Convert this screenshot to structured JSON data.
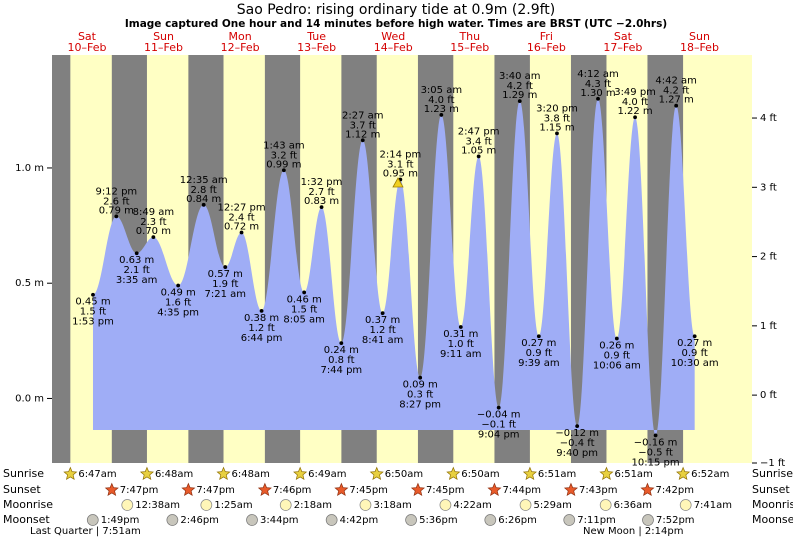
{
  "chart_data": {
    "type": "tide",
    "title": "Sao Pedro: rising  ordinary tide at 0.9m (2.9ft)",
    "subtitle": "Image captured One hour and 14 minutes before high water. Times are BRST (UTC −2.0hrs)",
    "ylim": [
      -0.28,
      1.49
    ],
    "yticks": [
      {
        "value": 0,
        "label": "0.0 m"
      },
      {
        "value": 0.5,
        "label": "0.5 m"
      },
      {
        "value": 1,
        "label": "1.0 m"
      }
    ],
    "y2lim": [
      -0.98,
      4.91
    ],
    "y2ticks": [
      {
        "value": -1,
        "label": "−1 ft"
      },
      {
        "value": 0,
        "label": "0 ft"
      },
      {
        "value": 1,
        "label": "1 ft"
      },
      {
        "value": 2,
        "label": "2 ft"
      },
      {
        "value": 3,
        "label": "3 ft"
      },
      {
        "value": 4,
        "label": "4 ft"
      }
    ],
    "row_labels": {
      "sunrise": "Sunrise",
      "sunset": "Sunset",
      "moonrise": "Moonrise",
      "moonset": "Moonset"
    },
    "days": [
      {
        "weekday": "Sat",
        "date": "10–Feb",
        "sunrise": "6:47am",
        "sunset": "7:47pm",
        "moonset": "1:49pm",
        "tides": [
          {
            "time": "1:53 pm",
            "height_m": 0.45,
            "label_m": "0.45 m",
            "label_ft": "1.5 ft"
          },
          {
            "time": "9:12 pm",
            "height_m": 0.79,
            "label_m": "0.79 m",
            "label_ft": "2.6 ft"
          }
        ]
      },
      {
        "weekday": "Sun",
        "date": "11–Feb",
        "sunrise": "6:48am",
        "sunset": "7:47pm",
        "moonrise": "12:38am",
        "moonset": "2:46pm",
        "tides": [
          {
            "time": "3:35 am",
            "height_m": 0.63,
            "label_m": "0.63 m",
            "label_ft": "2.1 ft"
          },
          {
            "time": "8:49 am",
            "height_m": 0.7,
            "label_m": "0.70 m",
            "label_ft": "2.3 ft"
          },
          {
            "time": "4:35 pm",
            "height_m": 0.49,
            "label_m": "0.49 m",
            "label_ft": "1.6 ft"
          }
        ]
      },
      {
        "weekday": "Mon",
        "date": "12–Feb",
        "sunrise": "6:48am",
        "sunset": "7:46pm",
        "moonrise": "1:25am",
        "moonset": "3:44pm",
        "tides": [
          {
            "time": "12:35 am",
            "height_m": 0.84,
            "label_m": "0.84 m",
            "label_ft": "2.8 ft"
          },
          {
            "time": "7:21 am",
            "height_m": 0.57,
            "label_m": "0.57 m",
            "label_ft": "1.9 ft"
          },
          {
            "time": "12:27 pm",
            "height_m": 0.72,
            "label_m": "0.72 m",
            "label_ft": "2.4 ft"
          },
          {
            "time": "6:44 pm",
            "height_m": 0.38,
            "label_m": "0.38 m",
            "label_ft": "1.2 ft"
          }
        ]
      },
      {
        "weekday": "Tue",
        "date": "13–Feb",
        "sunrise": "6:49am",
        "sunset": "7:45pm",
        "moonrise": "2:18am",
        "moonset": "4:42pm",
        "tides": [
          {
            "time": "1:43 am",
            "height_m": 0.99,
            "label_m": "0.99 m",
            "label_ft": "3.2 ft"
          },
          {
            "time": "8:05 am",
            "height_m": 0.46,
            "label_m": "0.46 m",
            "label_ft": "1.5 ft"
          },
          {
            "time": "1:32 pm",
            "height_m": 0.83,
            "label_m": "0.83 m",
            "label_ft": "2.7 ft"
          },
          {
            "time": "7:44 pm",
            "height_m": 0.24,
            "label_m": "0.24 m",
            "label_ft": "0.8 ft"
          }
        ]
      },
      {
        "weekday": "Wed",
        "date": "14–Feb",
        "sunrise": "6:50am",
        "sunset": "7:45pm",
        "moonrise": "3:18am",
        "moonset": "5:36pm",
        "tides": [
          {
            "time": "2:27 am",
            "height_m": 1.12,
            "label_m": "1.12 m",
            "label_ft": "3.7 ft"
          },
          {
            "time": "8:41 am",
            "height_m": 0.37,
            "label_m": "0.37 m",
            "label_ft": "1.2 ft"
          },
          {
            "time": "2:14 pm",
            "height_m": 0.95,
            "label_m": "0.95 m",
            "label_ft": "3.1 ft"
          },
          {
            "time": "8:27 pm",
            "height_m": 0.09,
            "label_m": "0.09 m",
            "label_ft": "0.3 ft"
          }
        ]
      },
      {
        "weekday": "Thu",
        "date": "15–Feb",
        "sunrise": "6:50am",
        "sunset": "7:44pm",
        "moonrise": "4:22am",
        "moonset": "6:26pm",
        "tides": [
          {
            "time": "3:05 am",
            "height_m": 1.23,
            "label_m": "1.23 m",
            "label_ft": "4.0 ft"
          },
          {
            "time": "9:11 am",
            "height_m": 0.31,
            "label_m": "0.31 m",
            "label_ft": "1.0 ft"
          },
          {
            "time": "2:47 pm",
            "height_m": 1.05,
            "label_m": "1.05 m",
            "label_ft": "3.4 ft"
          },
          {
            "time": "9:04 pm",
            "height_m": -0.04,
            "label_m": "−0.04 m",
            "label_ft": "−0.1 ft"
          }
        ]
      },
      {
        "weekday": "Fri",
        "date": "16–Feb",
        "sunrise": "6:51am",
        "sunset": "7:43pm",
        "moonrise": "5:29am",
        "moonset": "7:11pm",
        "tides": [
          {
            "time": "3:40 am",
            "height_m": 1.29,
            "label_m": "1.29 m",
            "label_ft": "4.2 ft"
          },
          {
            "time": "9:39 am",
            "height_m": 0.27,
            "label_m": "0.27 m",
            "label_ft": "0.9 ft"
          },
          {
            "time": "3:20 pm",
            "height_m": 1.15,
            "label_m": "1.15 m",
            "label_ft": "3.8 ft"
          },
          {
            "time": "9:40 pm",
            "height_m": -0.12,
            "label_m": "−0.12 m",
            "label_ft": "−0.4 ft"
          }
        ]
      },
      {
        "weekday": "Sat",
        "date": "17–Feb",
        "sunrise": "6:51am",
        "sunset": "7:42pm",
        "moonrise": "6:36am",
        "moonset": "7:52pm",
        "tides": [
          {
            "time": "4:12 am",
            "height_m": 1.3,
            "label_m": "1.30 m",
            "label_ft": "4.3 ft"
          },
          {
            "time": "10:06 am",
            "height_m": 0.26,
            "label_m": "0.26 m",
            "label_ft": "0.9 ft"
          },
          {
            "time": "3:49 pm",
            "height_m": 1.22,
            "label_m": "1.22 m",
            "label_ft": "4.0 ft"
          },
          {
            "time": "10:15 pm",
            "height_m": -0.16,
            "label_m": "−0.16 m",
            "label_ft": "−0.5 ft"
          }
        ]
      },
      {
        "weekday": "Sun",
        "date": "18–Feb",
        "sunrise": "6:52am",
        "moonrise": "7:41am",
        "tides": [
          {
            "time": "4:42 am",
            "height_m": 1.27,
            "label_m": "1.27 m",
            "label_ft": "4.2 ft"
          },
          {
            "time": "10:30 am",
            "height_m": 0.27,
            "label_m": "0.27 m",
            "label_ft": "0.9 ft"
          }
        ]
      }
    ],
    "moon_phases": [
      "Last Quarter | 7:51am",
      "New Moon | 2:14pm"
    ]
  }
}
